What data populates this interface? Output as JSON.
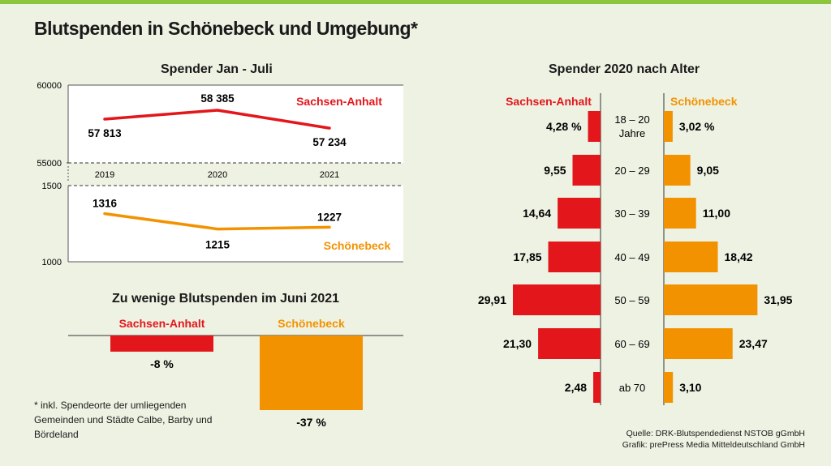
{
  "title": "Blutspenden in Schönebeck und Umgebung*",
  "colors": {
    "red": "#e3161b",
    "orange": "#f39200",
    "accent": "#8cc63f",
    "bg": "#eef2e3"
  },
  "chart_data": [
    {
      "type": "line",
      "title": "Spender Jan - Juli",
      "categories": [
        "2019",
        "2020",
        "2021"
      ],
      "panels": [
        {
          "name": "Sachsen-Anhalt",
          "color": "#e3161b",
          "values": [
            57813,
            58385,
            57234
          ],
          "value_labels": [
            "57 813",
            "58 385",
            "57 234"
          ],
          "ylim": [
            55000,
            60000
          ],
          "tick_labels": [
            "60000",
            "55000"
          ]
        },
        {
          "name": "Schönebeck",
          "color": "#f39200",
          "values": [
            1316,
            1215,
            1227
          ],
          "value_labels": [
            "1316",
            "1215",
            "1227"
          ],
          "ylim": [
            1000,
            1500
          ],
          "tick_labels": [
            "1500",
            "1000"
          ]
        }
      ]
    },
    {
      "type": "bar",
      "title": "Zu wenige Blutspenden im Juni 2021",
      "categories": [
        "Sachsen-Anhalt",
        "Schönebeck"
      ],
      "values": [
        -8,
        -37
      ],
      "value_labels": [
        "-8 %",
        "-37 %"
      ],
      "colors": [
        "#e3161b",
        "#f39200"
      ]
    },
    {
      "type": "bar",
      "orientation": "horizontal-butterfly",
      "title": "Spender 2020 nach Alter",
      "categories": [
        "18 – 20 Jahre",
        "20 – 29",
        "30 – 39",
        "40 – 49",
        "50 – 59",
        "60 – 69",
        "ab 70"
      ],
      "series": [
        {
          "name": "Sachsen-Anhalt",
          "color": "#e3161b",
          "values": [
            4.28,
            9.55,
            14.64,
            17.85,
            29.91,
            21.3,
            2.48
          ],
          "value_labels": [
            "4,28 %",
            "9,55",
            "14,64",
            "17,85",
            "29,91",
            "21,30",
            "2,48"
          ]
        },
        {
          "name": "Schönebeck",
          "color": "#f39200",
          "values": [
            3.02,
            9.05,
            11.0,
            18.42,
            31.95,
            23.47,
            3.1
          ],
          "value_labels": [
            "3,02 %",
            "9,05",
            "11,00",
            "18,42",
            "31,95",
            "23,47",
            "3,10"
          ]
        }
      ]
    }
  ],
  "footnote": "* inkl. Spendeorte der umliegenden Gemeinden und Städte Calbe, Barby und Bördeland",
  "source_line1": "Quelle: DRK-Blutspendedienst NSTOB gGmbH",
  "source_line2": "Grafik: prePress Media Mitteldeutschland GmbH"
}
